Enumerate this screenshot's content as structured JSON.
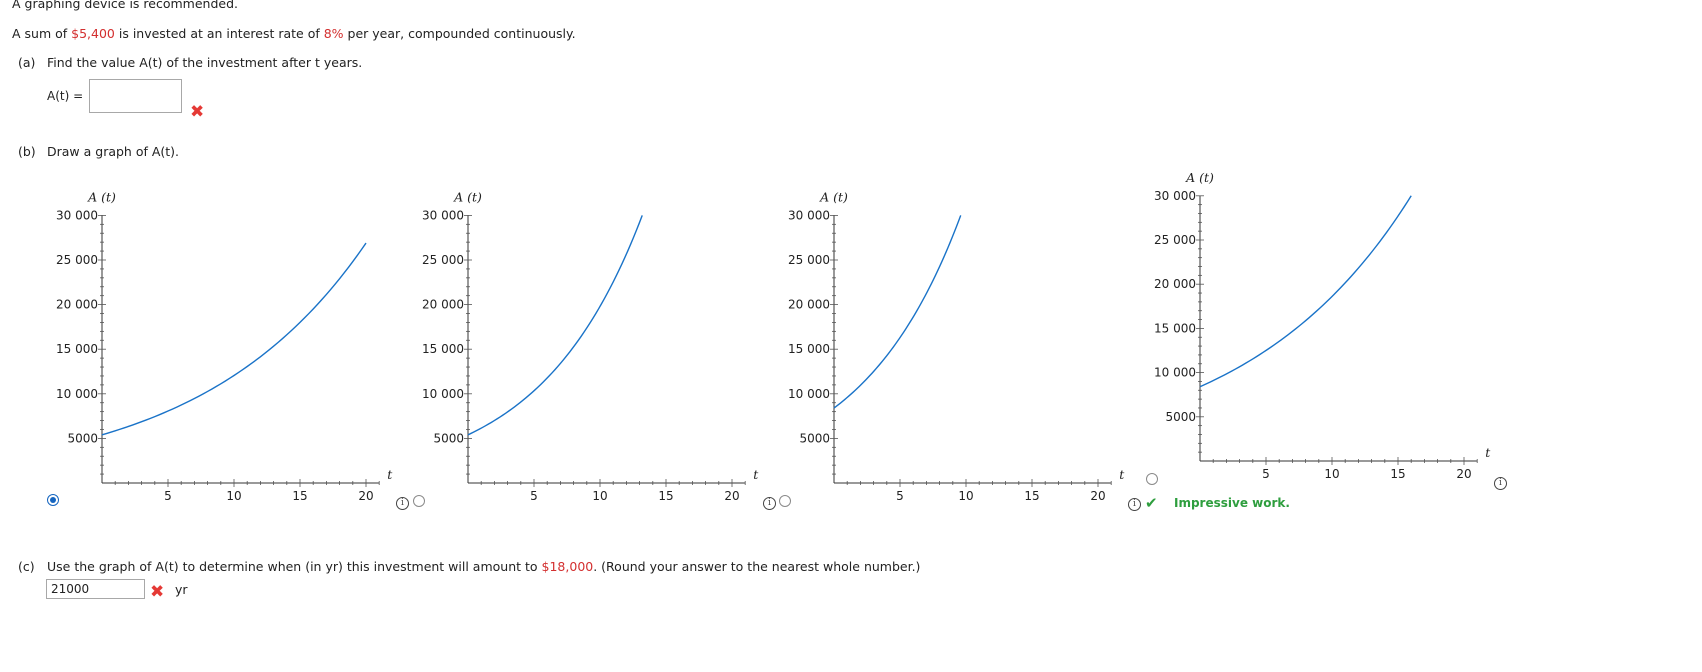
{
  "intro": {
    "recommended": "A graphing device is recommended.",
    "problem_pre": "A sum of ",
    "amount": "$5,400",
    "problem_mid": " is invested at an interest rate of ",
    "rate": "8%",
    "problem_post": " per year, compounded continuously."
  },
  "part_a": {
    "label": "(a)",
    "question": "Find the value A(t) of the investment after t years.",
    "field_label": "A(t) =",
    "value": ""
  },
  "part_b": {
    "label": "(b)",
    "question": "Draw a graph of A(t).",
    "y_axis_label": "A (t)",
    "x_axis_label": "t",
    "feedback": "Impressive work."
  },
  "part_c": {
    "label": "(c)",
    "question_pre": "Use the graph of A(t) to determine when (in yr) this investment will amount to ",
    "target": "$18,000",
    "question_post": ". (Round your answer to the nearest whole number.)",
    "value": "21000",
    "unit": "yr"
  },
  "chart_data": [
    {
      "type": "line",
      "ylabel": "A (t)",
      "xlabel": "t",
      "xlim": [
        0,
        21
      ],
      "ylim": [
        0,
        30000
      ],
      "xticks": [
        "5",
        "10",
        "15",
        "20"
      ],
      "yticks": [
        "5000",
        "10 000",
        "15 000",
        "20 000",
        "25 000",
        "30 000"
      ],
      "series": [
        {
          "x": [
            0,
            20
          ],
          "y": [
            5400,
            26900
          ]
        }
      ],
      "selected": true
    },
    {
      "type": "line",
      "ylabel": "A (t)",
      "xlabel": "t",
      "xlim": [
        0,
        21
      ],
      "ylim": [
        0,
        30000
      ],
      "xticks": [
        "5",
        "10",
        "15",
        "20"
      ],
      "yticks": [
        "5000",
        "10 000",
        "15 000",
        "20 000",
        "25 000",
        "30 000"
      ],
      "series": [
        {
          "x": [
            0,
            13.2
          ],
          "y": [
            5400,
            30000
          ]
        }
      ],
      "selected": false
    },
    {
      "type": "line",
      "ylabel": "A (t)",
      "xlabel": "t",
      "xlim": [
        0,
        21
      ],
      "ylim": [
        0,
        30000
      ],
      "xticks": [
        "5",
        "10",
        "15",
        "20"
      ],
      "yticks": [
        "5000",
        "10 000",
        "15 000",
        "20 000",
        "25 000",
        "30 000"
      ],
      "series": [
        {
          "x": [
            0,
            9.6
          ],
          "y": [
            8400,
            30000
          ]
        }
      ],
      "selected": false
    },
    {
      "type": "line",
      "ylabel": "A (t)",
      "xlabel": "t",
      "xlim": [
        0,
        21
      ],
      "ylim": [
        0,
        30000
      ],
      "xticks": [
        "5",
        "10",
        "15",
        "20"
      ],
      "yticks": [
        "5000",
        "10 000",
        "15 000",
        "20 000",
        "25 000",
        "30 000"
      ],
      "series": [
        {
          "x": [
            0,
            16
          ],
          "y": [
            8400,
            30000
          ]
        }
      ],
      "selected": false
    }
  ]
}
